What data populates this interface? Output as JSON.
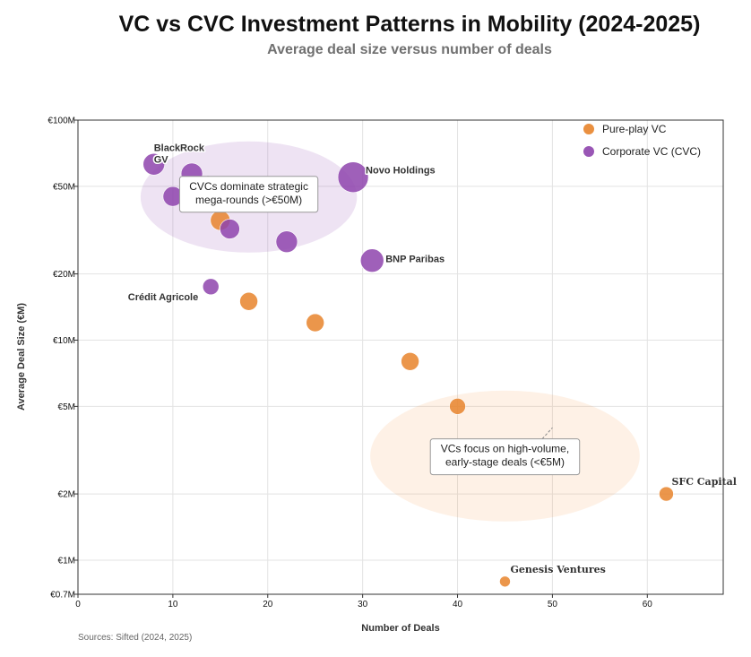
{
  "chart_data": {
    "type": "scatter",
    "title": "VC vs CVC Investment Patterns in Mobility (2024-2025)",
    "subtitle": "Average deal size versus number of deals",
    "xlabel": "Number of Deals",
    "ylabel": "Average Deal Size (€M)",
    "xlim": [
      0,
      68
    ],
    "ylim": [
      0.7,
      100
    ],
    "y_scale": "log",
    "x_ticks": [
      0,
      10,
      20,
      30,
      40,
      50,
      60
    ],
    "y_ticks": [
      {
        "value": 0.7,
        "label": "€0.7M"
      },
      {
        "value": 1,
        "label": "€1M"
      },
      {
        "value": 2,
        "label": "€2M"
      },
      {
        "value": 5,
        "label": "€5M"
      },
      {
        "value": 10,
        "label": "€10M"
      },
      {
        "value": 20,
        "label": "€20M"
      },
      {
        "value": 50,
        "label": "€50M"
      },
      {
        "value": 100,
        "label": "€100M"
      }
    ],
    "grid": true,
    "legend_position": "top-right",
    "series": [
      {
        "name": "Pure-play VC",
        "color": "#e8842b",
        "points": [
          {
            "x": 15,
            "y": 35,
            "size": 11
          },
          {
            "x": 18,
            "y": 15,
            "size": 10
          },
          {
            "x": 25,
            "y": 12,
            "size": 10
          },
          {
            "x": 35,
            "y": 8,
            "size": 10
          },
          {
            "x": 40,
            "y": 5,
            "size": 9
          },
          {
            "x": 62,
            "y": 2,
            "size": 8,
            "label": "SFC Capital",
            "label_font": "serif"
          },
          {
            "x": 45,
            "y": 0.8,
            "size": 6,
            "label": "Genesis Ventures",
            "label_font": "serif"
          }
        ]
      },
      {
        "name": "Corporate VC (CVC)",
        "color": "#8e44ad",
        "points": [
          {
            "x": 8,
            "y": 63,
            "size": 12,
            "label": "BlackRock",
            "label_font": "sans"
          },
          {
            "x": 12,
            "y": 57,
            "size": 12,
            "label": "GV",
            "label_font": "sans"
          },
          {
            "x": 10,
            "y": 45,
            "size": 11
          },
          {
            "x": 16,
            "y": 32,
            "size": 11
          },
          {
            "x": 22,
            "y": 28,
            "size": 12
          },
          {
            "x": 29,
            "y": 55,
            "size": 17,
            "label": "Novo Holdings",
            "label_font": "sans"
          },
          {
            "x": 31,
            "y": 23,
            "size": 13,
            "label": "BNP Paribas",
            "label_font": "sans"
          },
          {
            "x": 14,
            "y": 17.5,
            "size": 9,
            "label": "Crédit Agricole",
            "label_font": "sans"
          }
        ]
      }
    ],
    "regions": [
      {
        "name": "cvc-region",
        "cx": 18,
        "cy": 45,
        "rx_units": 11.4,
        "y_top": 80,
        "y_bottom": 25,
        "color": "#8e44ad"
      },
      {
        "name": "vc-region",
        "cx": 45,
        "cy": 3,
        "rx_units": 14.2,
        "y_top": 5.9,
        "y_bottom": 1.5,
        "color": "#f5a15a"
      }
    ],
    "annotations": [
      {
        "text_lines": [
          "CVCs dominate strategic",
          "mega-rounds (>€50M)"
        ],
        "x": 18,
        "y": 46,
        "arrow_to": {
          "x": 15,
          "y": 55
        }
      },
      {
        "text_lines": [
          "VCs focus on high-volume,",
          "early-stage deals (<€5M)"
        ],
        "x": 45,
        "y": 2.95,
        "arrow_to": {
          "x": 50,
          "y": 4
        }
      }
    ],
    "source": "Sources: Sifted (2024, 2025)"
  }
}
